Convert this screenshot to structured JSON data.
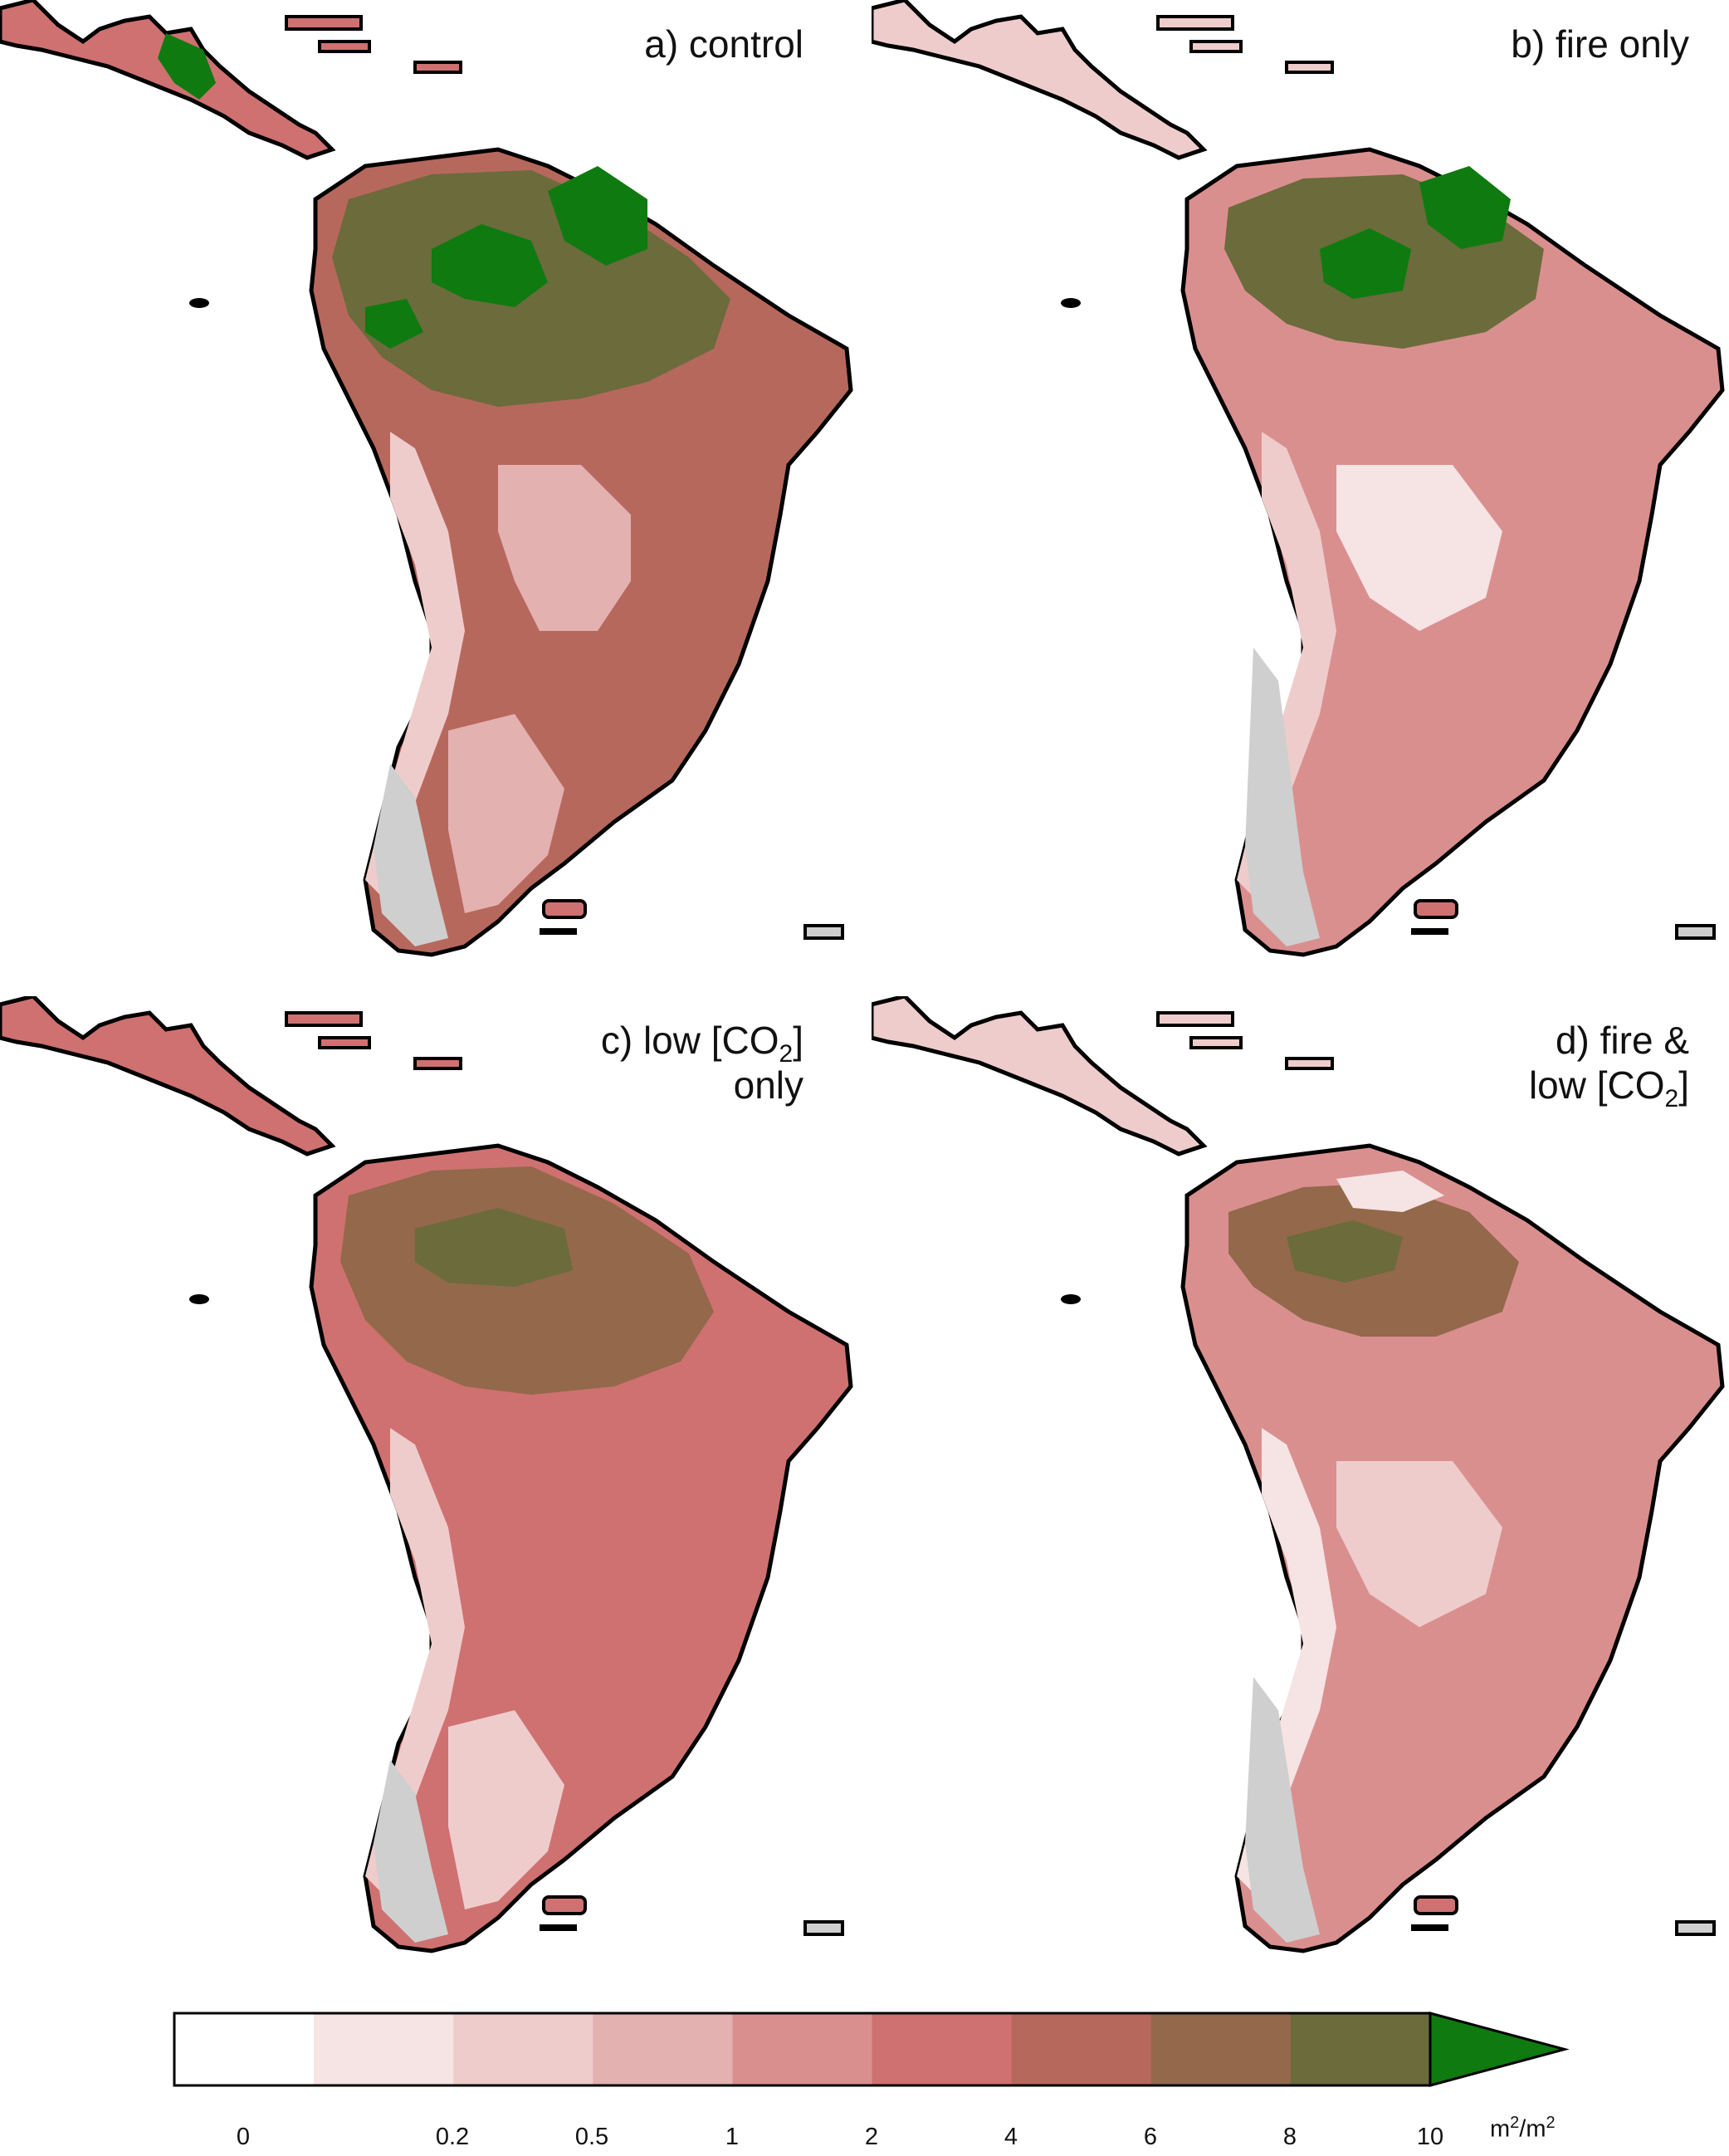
{
  "colors": {
    "background": "#ffffff",
    "coastline": "#000000",
    "ice": "#cfcfcf",
    "lai_0_0.2": "#ffffff",
    "lai_0.2_0.5": "#f6e3e3",
    "lai_0.5_1": "#efcccc",
    "lai_1_2": "#e4b1b1",
    "lai_2_4": "#da8f8f",
    "lai_4_6": "#cf7171",
    "lai_6_8": "#b7685c",
    "lai_8_10": "#93684b",
    "lai_10_plus": "#6b6b3c",
    "lai_over": "#0f7a0f"
  },
  "panels": [
    {
      "id": "a",
      "title_lines": [
        "a) control"
      ],
      "dominant_class": "lai_8_10"
    },
    {
      "id": "b",
      "title_lines": [
        "b) fire only"
      ],
      "dominant_class": "lai_4_6"
    },
    {
      "id": "c",
      "title_prefix": "c) low [CO",
      "title_sub": "2",
      "title_suffix": "]",
      "title_line2": "only",
      "dominant_class": "lai_6_8"
    },
    {
      "id": "d",
      "title_line1": "d) fire &",
      "title_prefix": "low [CO",
      "title_sub": "2",
      "title_suffix": "]",
      "dominant_class": "lai_4_6"
    }
  ],
  "legend": {
    "tick_labels": [
      "0",
      "0.2",
      "0.5",
      "1",
      "2",
      "4",
      "6",
      "8",
      "10"
    ],
    "unit_base": "m",
    "unit_exp": "2",
    "unit_sep": "/m",
    "unit_exp2": "2",
    "extend": "max"
  }
}
